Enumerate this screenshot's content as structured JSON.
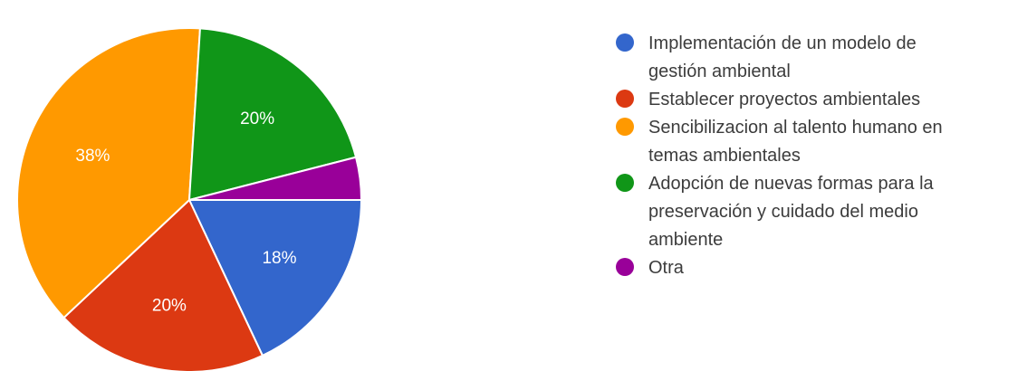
{
  "chart_data": {
    "type": "pie",
    "slices": [
      {
        "label": "Implementación de un modelo de gestión ambiental",
        "label_lines": [
          "Implementación de un modelo de",
          "gestión ambiental"
        ],
        "value": 18,
        "display": "18%",
        "color": "#3366cc"
      },
      {
        "label": "Establecer proyectos ambientales",
        "label_lines": [
          "Establecer proyectos ambientales"
        ],
        "value": 20,
        "display": "20%",
        "color": "#dc3912"
      },
      {
        "label": "Sencibilizacion al talento humano en temas ambientales",
        "label_lines": [
          "Sencibilizacion al talento humano en",
          "temas ambientales"
        ],
        "value": 38,
        "display": "38%",
        "color": "#ff9900"
      },
      {
        "label": "Adopción de nuevas formas para la preservación y cuidado del medio ambiente",
        "label_lines": [
          "Adopción de nuevas formas para la",
          "preservación y cuidado del medio",
          "ambiente"
        ],
        "value": 20,
        "display": "20%",
        "color": "#109618"
      },
      {
        "label": "Otra",
        "label_lines": [
          "Otra"
        ],
        "value": 4,
        "display": "",
        "color": "#990099"
      }
    ],
    "start": "3 o'clock",
    "direction": "clockwise",
    "legend_position": "right"
  }
}
